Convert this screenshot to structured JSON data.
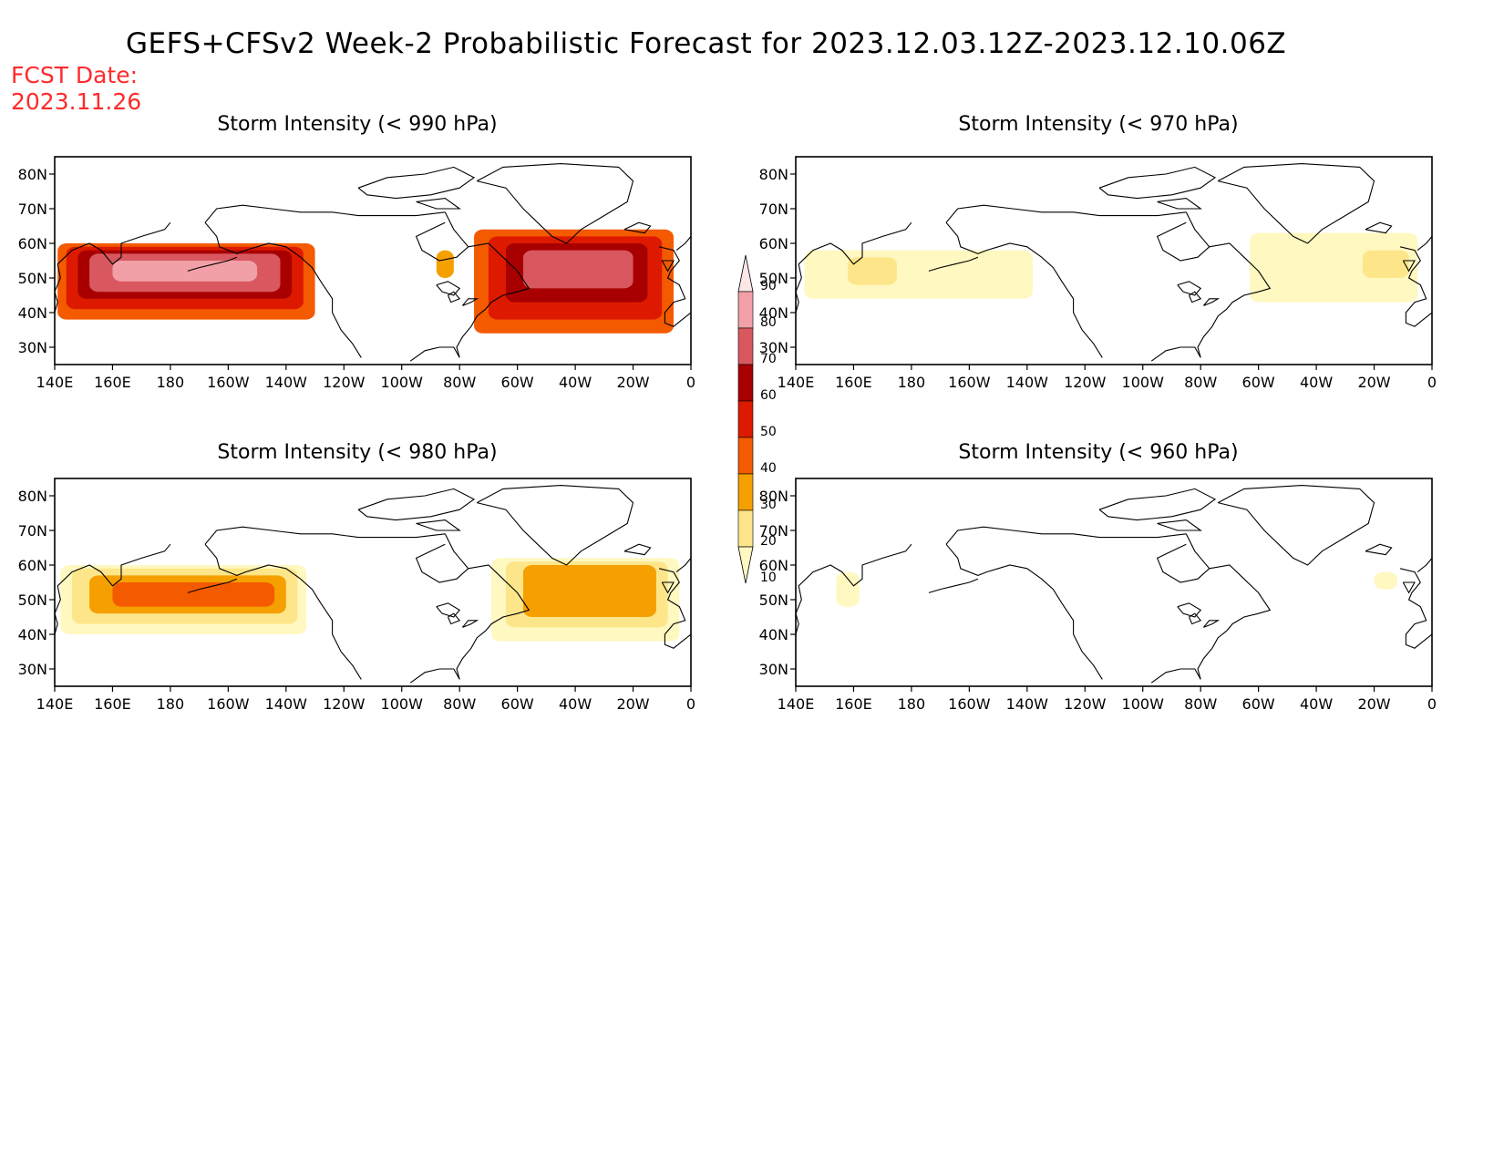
{
  "title": "GEFS+CFSv2 Week-2 Probabilistic Forecast for 2023.12.03.12Z-2023.12.10.06Z",
  "fcst_date": {
    "label": "FCST Date:",
    "value": "2023.11.26"
  },
  "lat_labels": [
    "80N",
    "70N",
    "60N",
    "50N",
    "40N",
    "30N"
  ],
  "lon_labels": [
    "140E",
    "160E",
    "180",
    "160W",
    "140W",
    "120W",
    "100W",
    "80W",
    "60W",
    "40W",
    "20W",
    "0"
  ],
  "colorbar": {
    "labels": [
      "90",
      "80",
      "70",
      "60",
      "50",
      "40",
      "30",
      "20",
      "10"
    ],
    "colors": [
      "#fde6e6",
      "#f2a0a8",
      "#d95860",
      "#a80000",
      "#dd1a00",
      "#f45a00",
      "#f5a000",
      "#fde68a",
      "#fff8c0"
    ]
  },
  "panels": [
    {
      "title": "Storm Intensity (< 990 hPa)",
      "regions": [
        {
          "lon": [
            141,
            230
          ],
          "lat": [
            38,
            60
          ],
          "level": 5
        },
        {
          "lon": [
            144,
            226
          ],
          "lat": [
            41,
            59
          ],
          "level": 4
        },
        {
          "lon": [
            148,
            222
          ],
          "lat": [
            44,
            58
          ],
          "level": 3
        },
        {
          "lon": [
            152,
            218
          ],
          "lat": [
            46,
            57
          ],
          "level": 2
        },
        {
          "lon": [
            160,
            210
          ],
          "lat": [
            49,
            55
          ],
          "level": 1
        },
        {
          "lon": [
            272,
            278
          ],
          "lat": [
            50,
            58
          ],
          "level": 6
        },
        {
          "lon": [
            285,
            354
          ],
          "lat": [
            34,
            64
          ],
          "level": 5
        },
        {
          "lon": [
            290,
            350
          ],
          "lat": [
            38,
            62
          ],
          "level": 4
        },
        {
          "lon": [
            296,
            345
          ],
          "lat": [
            43,
            60
          ],
          "level": 3
        },
        {
          "lon": [
            302,
            340
          ],
          "lat": [
            47,
            58
          ],
          "level": 2
        }
      ]
    },
    {
      "title": "Storm Intensity (< 970 hPa)",
      "regions": [
        {
          "lon": [
            143,
            222
          ],
          "lat": [
            44,
            58
          ],
          "level": 8
        },
        {
          "lon": [
            158,
            175
          ],
          "lat": [
            48,
            56
          ],
          "level": 7
        },
        {
          "lon": [
            297,
            355
          ],
          "lat": [
            43,
            63
          ],
          "level": 8
        },
        {
          "lon": [
            336,
            352
          ],
          "lat": [
            50,
            58
          ],
          "level": 7
        }
      ]
    },
    {
      "title": "Storm Intensity (< 980 hPa)",
      "regions": [
        {
          "lon": [
            142,
            227
          ],
          "lat": [
            40,
            60
          ],
          "level": 8
        },
        {
          "lon": [
            146,
            224
          ],
          "lat": [
            43,
            59
          ],
          "level": 7
        },
        {
          "lon": [
            152,
            220
          ],
          "lat": [
            46,
            57
          ],
          "level": 6
        },
        {
          "lon": [
            160,
            216
          ],
          "lat": [
            48,
            55
          ],
          "level": 5
        },
        {
          "lon": [
            291,
            356
          ],
          "lat": [
            38,
            62
          ],
          "level": 8
        },
        {
          "lon": [
            296,
            352
          ],
          "lat": [
            42,
            61
          ],
          "level": 7
        },
        {
          "lon": [
            302,
            348
          ],
          "lat": [
            45,
            60
          ],
          "level": 6
        }
      ]
    },
    {
      "title": "Storm Intensity (< 960 hPa)",
      "regions": [
        {
          "lon": [
            154,
            162
          ],
          "lat": [
            48,
            58
          ],
          "level": 8
        },
        {
          "lon": [
            340,
            348
          ],
          "lat": [
            53,
            58
          ],
          "level": 8
        }
      ]
    }
  ]
}
